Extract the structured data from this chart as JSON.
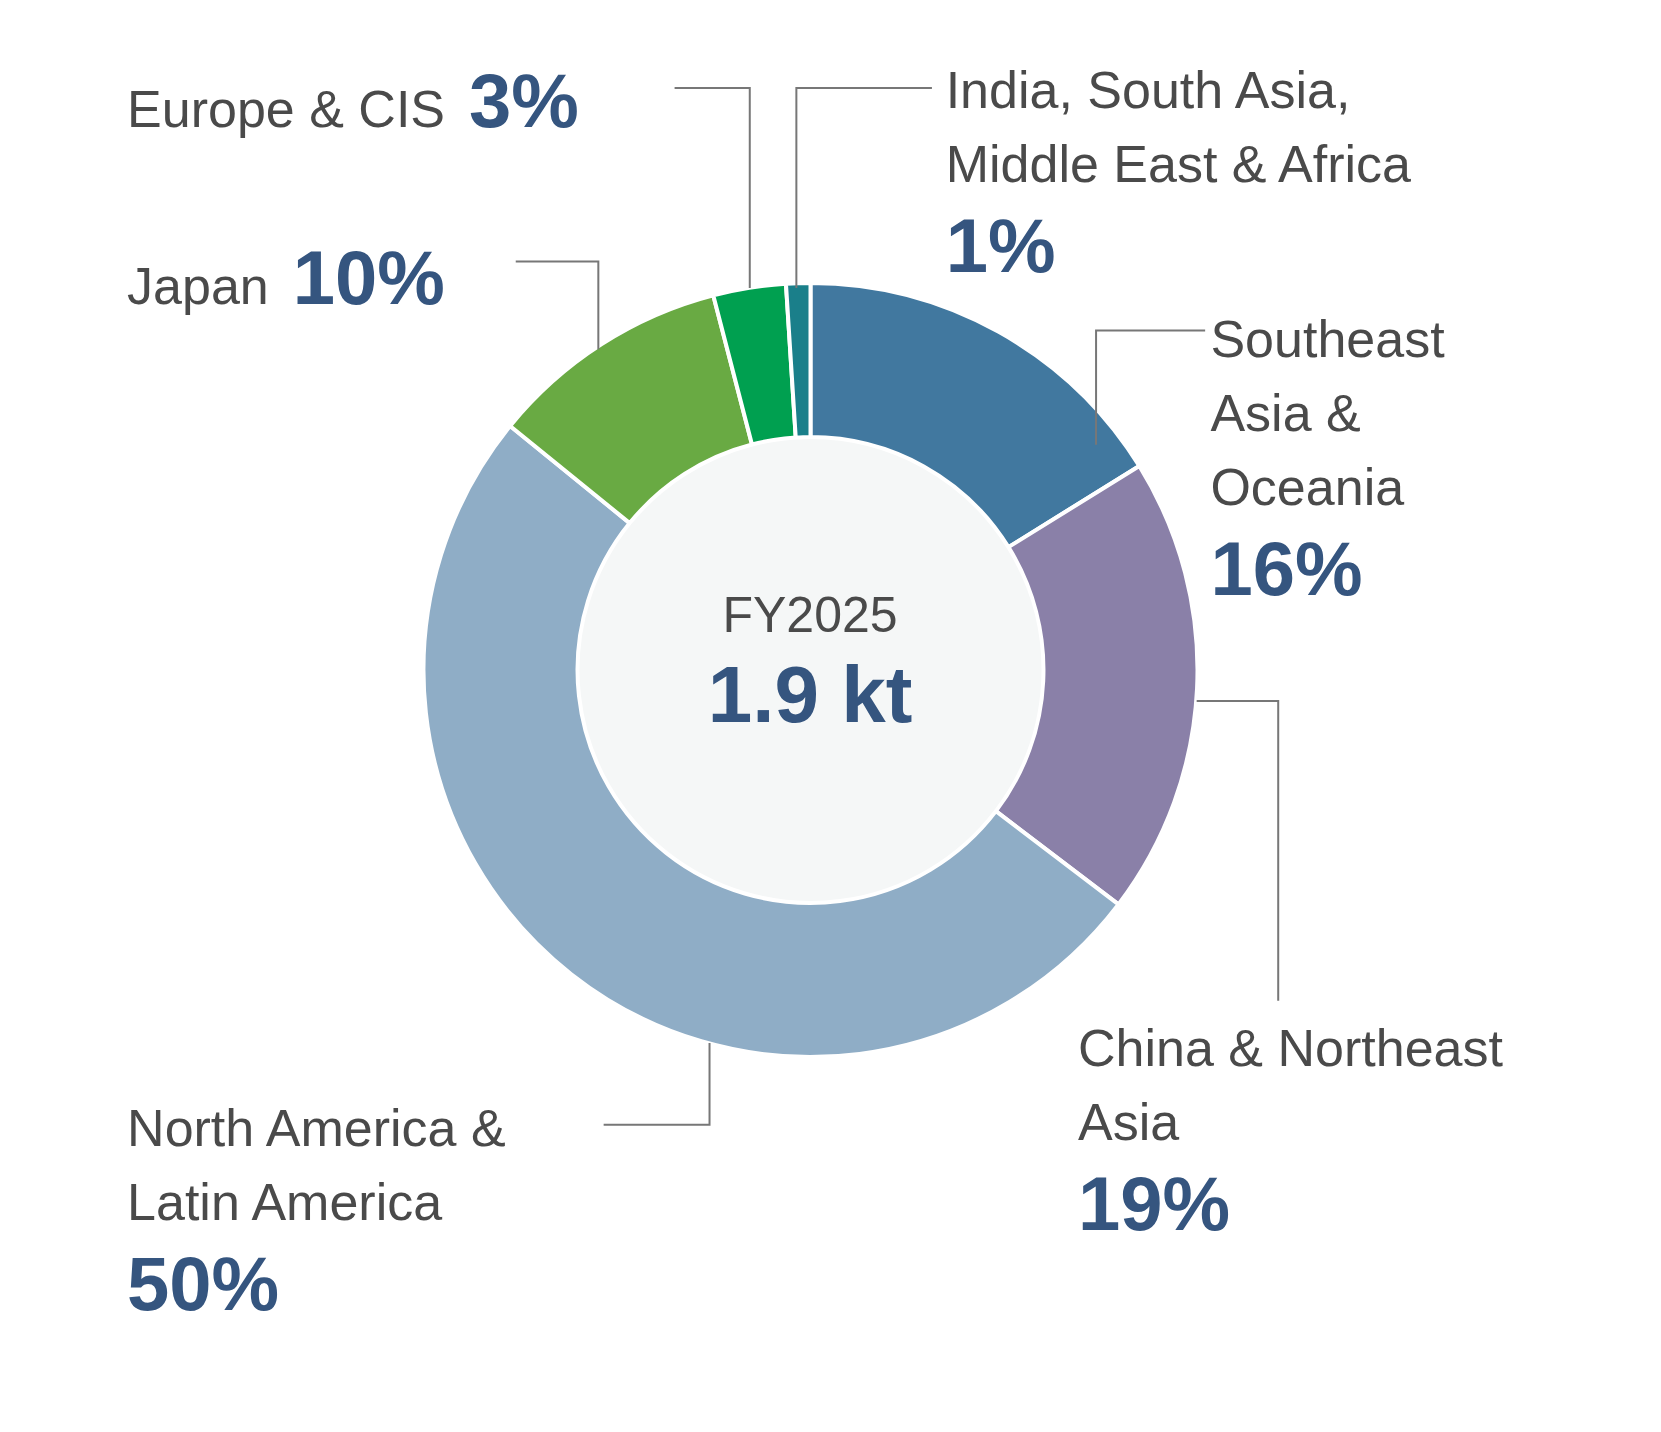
{
  "chart_data": {
    "type": "donut",
    "categories": [
      "Southeast Asia & Oceania",
      "China & Northeast Asia",
      "North America & Latin America",
      "Japan",
      "Europe & CIS",
      "India, South Asia, Middle East & Africa"
    ],
    "values": [
      16,
      19,
      50,
      10,
      3,
      1
    ],
    "value_labels": [
      "16%",
      "19%",
      "50%",
      "10%",
      "3%",
      "1%"
    ],
    "colors": [
      "#41789f",
      "#8a80a8",
      "#8fadc6",
      "#69aa43",
      "#00a050",
      "#1a7f8a"
    ],
    "annotations": [
      "FY2025",
      "1.9 kt"
    ],
    "legend": false
  }
}
